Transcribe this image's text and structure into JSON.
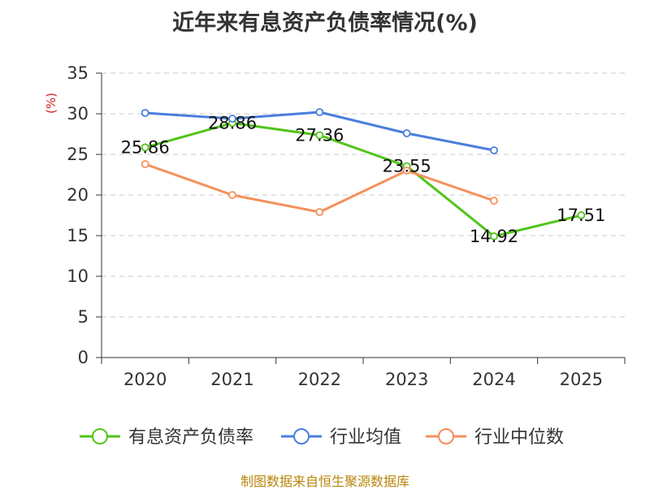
{
  "chart_data": {
    "type": "line",
    "title": "近年来有息资产负债率情况(%)",
    "ylabel": "(%)",
    "xlabel": "",
    "categories": [
      "2020",
      "2021",
      "2022",
      "2023",
      "2024",
      "2025"
    ],
    "ylim": [
      0,
      35
    ],
    "yticks": [
      0,
      5,
      10,
      15,
      20,
      25,
      30,
      35
    ],
    "grid": true,
    "legend_position": "bottom",
    "series": [
      {
        "name": "有息资产负债率",
        "color": "#52c41a",
        "labels": true,
        "values": [
          25.86,
          28.86,
          27.36,
          23.55,
          14.92,
          17.51
        ]
      },
      {
        "name": "行业均值",
        "color": "#4a7fdc",
        "labels": false,
        "values": [
          30.1,
          29.4,
          30.2,
          27.6,
          25.5,
          null
        ]
      },
      {
        "name": "行业中位数",
        "color": "#f5905c",
        "labels": false,
        "values": [
          23.8,
          20.0,
          17.9,
          23.0,
          19.3,
          null
        ]
      }
    ]
  },
  "source": "制图数据来自恒生聚源数据库"
}
